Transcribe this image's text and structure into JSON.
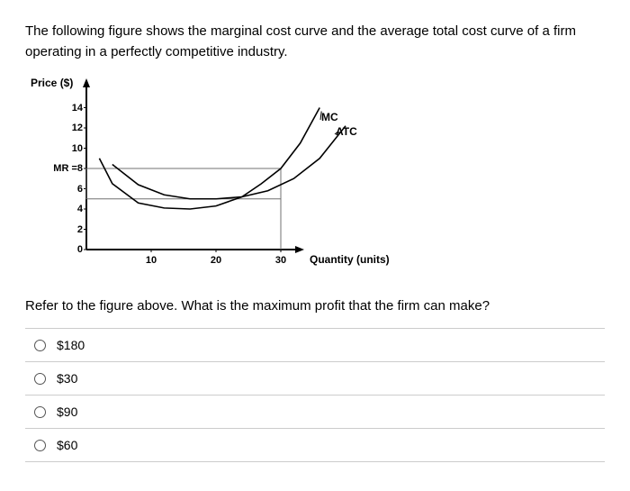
{
  "question": "The following figure shows the marginal cost curve and the average total cost curve of a firm operating in a perfectly competitive industry.",
  "followUp": "Refer to the figure above. What is the maximum profit that the firm can make?",
  "chart": {
    "yAxisTitle": "Price ($)",
    "xAxisTitle": "Quantity (units)",
    "yTicks": [
      {
        "label": "14",
        "value": 14
      },
      {
        "label": "12",
        "value": 12
      },
      {
        "label": "10",
        "value": 10
      },
      {
        "label": "MR =8",
        "value": 8
      },
      {
        "label": "6",
        "value": 6
      },
      {
        "label": "4",
        "value": 4
      },
      {
        "label": "2",
        "value": 2
      },
      {
        "label": "0",
        "value": 0
      }
    ],
    "xTicks": [
      {
        "label": "10",
        "value": 10
      },
      {
        "label": "20",
        "value": 20
      },
      {
        "label": "30",
        "value": 30
      }
    ],
    "curves": {
      "mc": {
        "label": "MC",
        "labelPos": {
          "x": 323,
          "y": 36
        }
      },
      "atc": {
        "label": "ATC",
        "labelPos": {
          "x": 339,
          "y": 52
        }
      }
    },
    "colors": {
      "axis": "#000000",
      "curve": "#000000",
      "grid": "#707070",
      "background": "#ffffff"
    },
    "plot": {
      "originX": 62,
      "originY": 190,
      "pxPerUnitX": 7.2,
      "pxPerUnitY": 11.25,
      "yAxisTop": 4,
      "xAxisRight": 300
    }
  },
  "options": [
    {
      "label": "$180"
    },
    {
      "label": "$30"
    },
    {
      "label": "$90"
    },
    {
      "label": "$60"
    }
  ]
}
